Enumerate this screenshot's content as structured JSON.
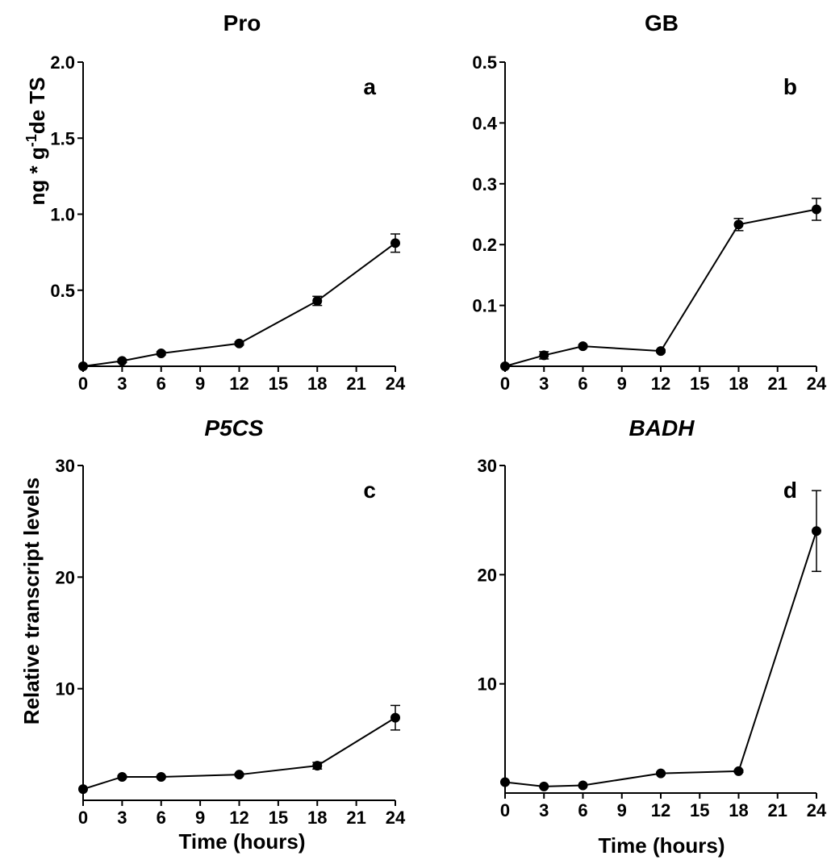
{
  "y_axis_labels": {
    "top": "ng * g-1de TS",
    "bottom": "Relative transcript levels"
  },
  "x_axis_label": "Time (hours)",
  "chart_data": [
    {
      "type": "line",
      "title": "Pro",
      "title_italic": false,
      "panel_letter": "a",
      "xlabel": "",
      "ylabel": "ng * g-1de TS",
      "x": [
        0,
        3,
        6,
        12,
        18,
        24
      ],
      "y": [
        0.0,
        0.035,
        0.085,
        0.15,
        0.43,
        0.81
      ],
      "error": [
        0.0,
        0.01,
        0.01,
        0.01,
        0.03,
        0.06
      ],
      "xticks": [
        "0",
        "3",
        "6",
        "9",
        "12",
        "15",
        "18",
        "21",
        "24"
      ],
      "yticks": [
        "0.5",
        "1.0",
        "1.5",
        "2.0"
      ],
      "xlim": [
        0,
        24
      ],
      "ylim": [
        0,
        2.0
      ],
      "grid": false
    },
    {
      "type": "line",
      "title": "GB",
      "title_italic": false,
      "panel_letter": "b",
      "xlabel": "",
      "ylabel": "",
      "x": [
        0,
        3,
        6,
        12,
        18,
        24
      ],
      "y": [
        0.0,
        0.018,
        0.033,
        0.025,
        0.233,
        0.258
      ],
      "error": [
        0.0,
        0.006,
        0.002,
        0.002,
        0.01,
        0.018
      ],
      "xticks": [
        "0",
        "3",
        "6",
        "9",
        "12",
        "15",
        "18",
        "21",
        "24"
      ],
      "yticks": [
        "0.1",
        "0.2",
        "0.3",
        "0.4",
        "0.5"
      ],
      "xlim": [
        0,
        24
      ],
      "ylim": [
        0,
        0.5
      ],
      "grid": false
    },
    {
      "type": "line",
      "title": "P5CS",
      "title_italic": true,
      "panel_letter": "c",
      "xlabel": "Time (hours)",
      "ylabel": "Relative transcript levels",
      "x": [
        0,
        3,
        6,
        12,
        18,
        24
      ],
      "y": [
        1.0,
        2.1,
        2.1,
        2.3,
        3.1,
        7.4
      ],
      "error": [
        0.0,
        0.1,
        0.1,
        0.1,
        0.3,
        1.1
      ],
      "xticks": [
        "0",
        "3",
        "6",
        "9",
        "12",
        "15",
        "18",
        "21",
        "24"
      ],
      "yticks": [
        "10",
        "20",
        "30"
      ],
      "xlim": [
        0,
        24
      ],
      "ylim": [
        0,
        30
      ],
      "grid": false
    },
    {
      "type": "line",
      "title": "BADH",
      "title_italic": true,
      "panel_letter": "d",
      "xlabel": "Time (hours)",
      "ylabel": "",
      "x": [
        0,
        3,
        6,
        12,
        18,
        24
      ],
      "y": [
        1.0,
        0.6,
        0.7,
        1.8,
        2.0,
        24.0
      ],
      "error": [
        0.0,
        0.05,
        0.05,
        0.1,
        0.1,
        3.7
      ],
      "xticks": [
        "0",
        "3",
        "6",
        "9",
        "12",
        "15",
        "18",
        "21",
        "24"
      ],
      "yticks": [
        "10",
        "20",
        "30"
      ],
      "xlim": [
        0,
        24
      ],
      "ylim": [
        0,
        30
      ],
      "grid": false
    }
  ]
}
